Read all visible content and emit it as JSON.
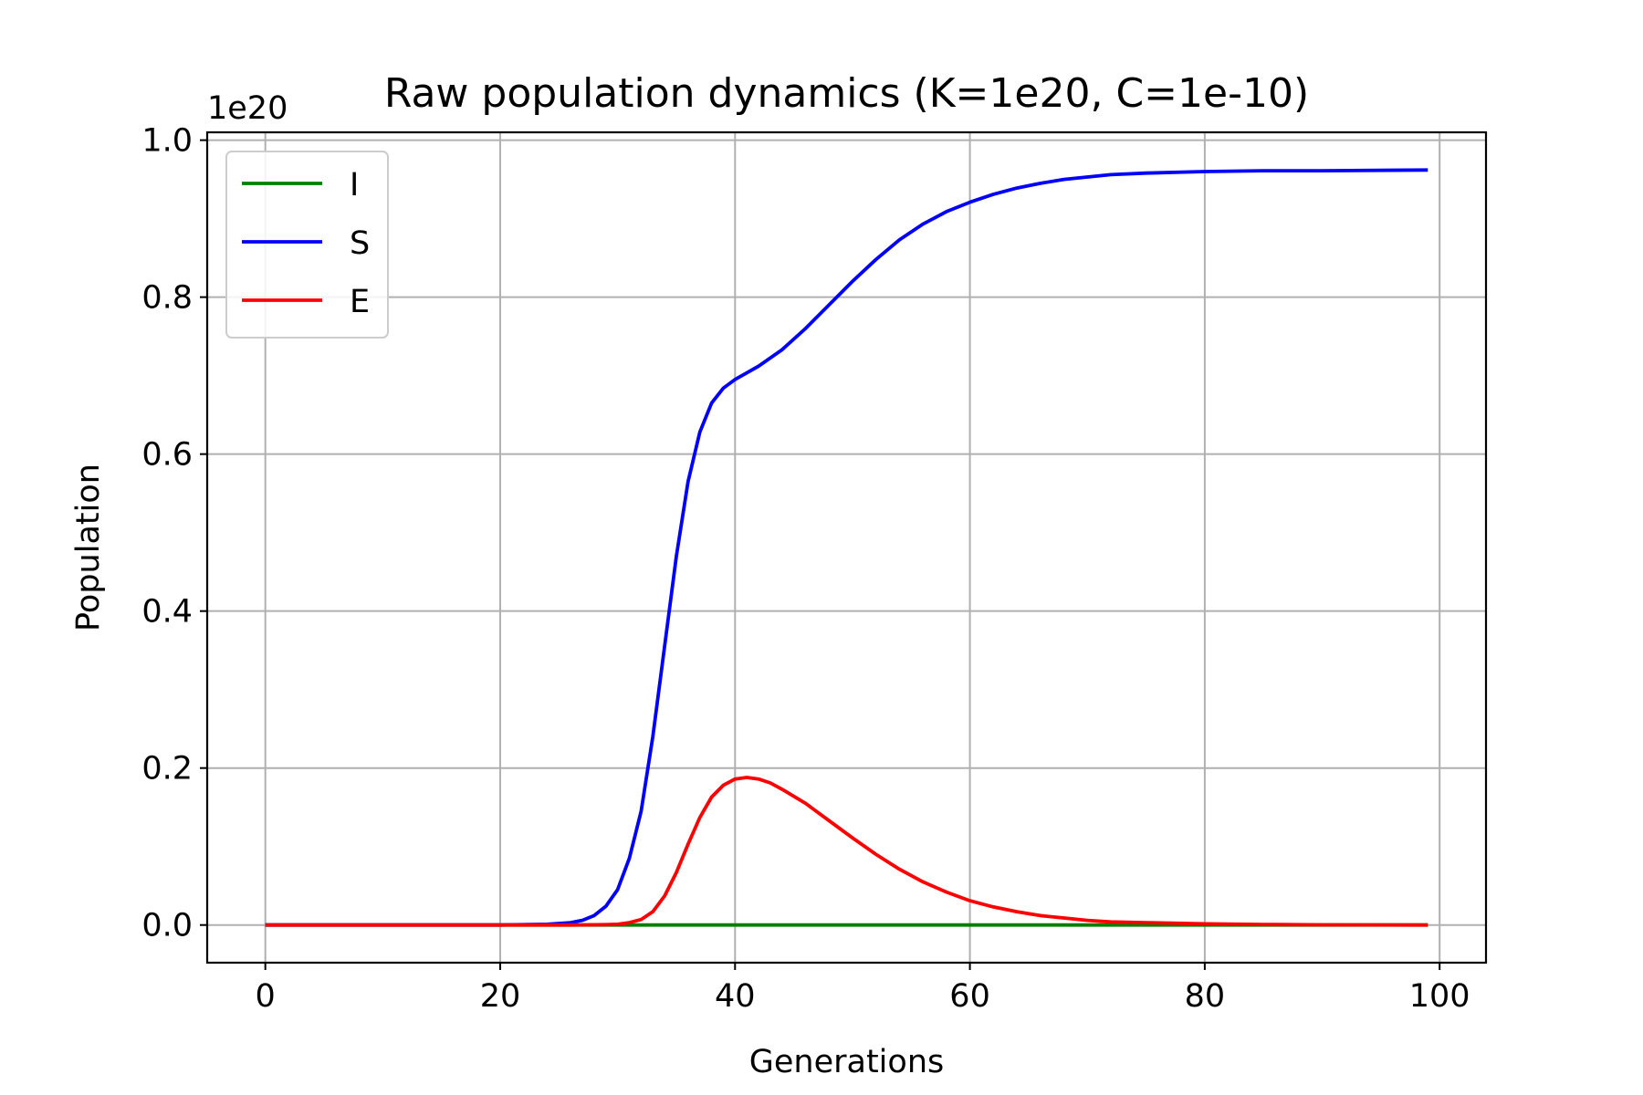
{
  "chart_data": {
    "type": "line",
    "title": "Raw population dynamics (K=1e20, C=1e-10)",
    "xlabel": "Generations",
    "ylabel": "Population",
    "offset_label": "1e20",
    "xlim": [
      -4.95,
      103.95
    ],
    "ylim": [
      -0.048,
      1.01
    ],
    "x_ticks": [
      0,
      20,
      40,
      60,
      80,
      100
    ],
    "x_tick_labels": [
      "0",
      "20",
      "40",
      "60",
      "80",
      "100"
    ],
    "y_ticks": [
      0.0,
      0.2,
      0.4,
      0.6,
      0.8,
      1.0
    ],
    "y_tick_labels": [
      "0.0",
      "0.2",
      "0.4",
      "0.6",
      "0.8",
      "1.0"
    ],
    "grid": true,
    "legend_position": "upper-left",
    "series": [
      {
        "name": "I",
        "color": "#008000",
        "points": [
          [
            0,
            0
          ],
          [
            99,
            0
          ]
        ]
      },
      {
        "name": "S",
        "color": "#0000ff",
        "points": [
          [
            0,
            0
          ],
          [
            20,
            0
          ],
          [
            24,
            0.001
          ],
          [
            26,
            0.003
          ],
          [
            27,
            0.006
          ],
          [
            28,
            0.012
          ],
          [
            29,
            0.024
          ],
          [
            30,
            0.045
          ],
          [
            31,
            0.085
          ],
          [
            32,
            0.145
          ],
          [
            33,
            0.24
          ],
          [
            34,
            0.355
          ],
          [
            35,
            0.47
          ],
          [
            36,
            0.565
          ],
          [
            37,
            0.628
          ],
          [
            38,
            0.665
          ],
          [
            39,
            0.684
          ],
          [
            40,
            0.695
          ],
          [
            42,
            0.712
          ],
          [
            44,
            0.733
          ],
          [
            46,
            0.76
          ],
          [
            48,
            0.79
          ],
          [
            50,
            0.82
          ],
          [
            52,
            0.848
          ],
          [
            54,
            0.873
          ],
          [
            56,
            0.893
          ],
          [
            58,
            0.909
          ],
          [
            60,
            0.921
          ],
          [
            62,
            0.931
          ],
          [
            64,
            0.939
          ],
          [
            66,
            0.945
          ],
          [
            68,
            0.95
          ],
          [
            70,
            0.953
          ],
          [
            72,
            0.956
          ],
          [
            75,
            0.958
          ],
          [
            80,
            0.96
          ],
          [
            85,
            0.961
          ],
          [
            90,
            0.961
          ],
          [
            99,
            0.962
          ]
        ]
      },
      {
        "name": "E",
        "color": "#ff0000",
        "points": [
          [
            0,
            0
          ],
          [
            26,
            0
          ],
          [
            29,
            0.0005
          ],
          [
            30,
            0.001
          ],
          [
            31,
            0.003
          ],
          [
            32,
            0.007
          ],
          [
            33,
            0.017
          ],
          [
            34,
            0.037
          ],
          [
            35,
            0.067
          ],
          [
            36,
            0.103
          ],
          [
            37,
            0.137
          ],
          [
            38,
            0.163
          ],
          [
            39,
            0.178
          ],
          [
            40,
            0.186
          ],
          [
            41,
            0.188
          ],
          [
            42,
            0.186
          ],
          [
            43,
            0.181
          ],
          [
            44,
            0.173
          ],
          [
            46,
            0.155
          ],
          [
            48,
            0.133
          ],
          [
            50,
            0.111
          ],
          [
            52,
            0.09
          ],
          [
            54,
            0.071
          ],
          [
            56,
            0.055
          ],
          [
            58,
            0.042
          ],
          [
            60,
            0.031
          ],
          [
            62,
            0.023
          ],
          [
            64,
            0.017
          ],
          [
            66,
            0.012
          ],
          [
            68,
            0.009
          ],
          [
            70,
            0.006
          ],
          [
            72,
            0.004
          ],
          [
            75,
            0.003
          ],
          [
            80,
            0.0015
          ],
          [
            85,
            0.0007
          ],
          [
            90,
            0.0003
          ],
          [
            99,
            0
          ]
        ]
      }
    ]
  }
}
